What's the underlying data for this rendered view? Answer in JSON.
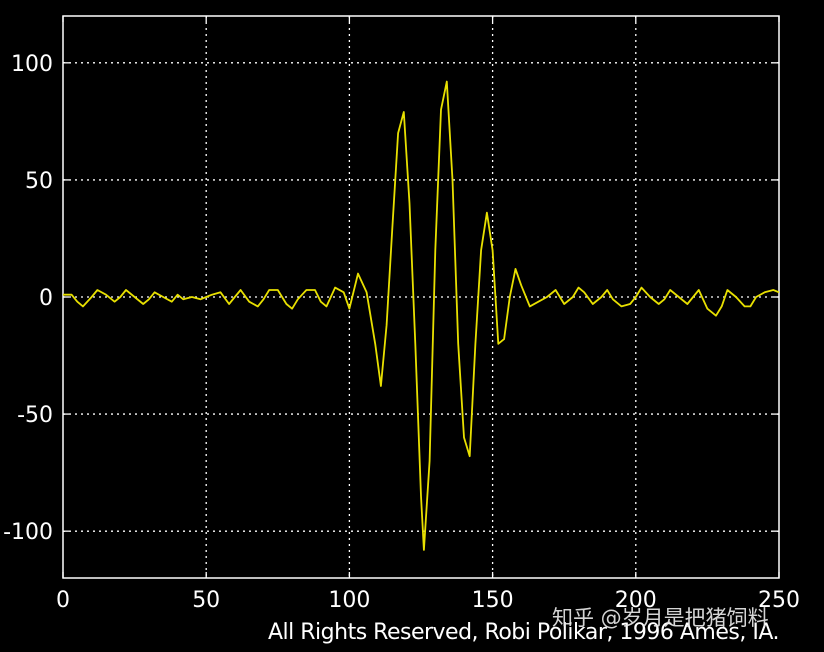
{
  "chart_data": {
    "type": "line",
    "title": "",
    "xlabel": "",
    "ylabel": "",
    "xlim": [
      0,
      250
    ],
    "ylim": [
      -120,
      120
    ],
    "grid": true,
    "x_ticks": [
      "0",
      "50",
      "100",
      "150",
      "200",
      "250"
    ],
    "y_ticks": [
      "100",
      "50",
      "0",
      "-50",
      "-100"
    ],
    "colors": {
      "background": "#000000",
      "axes": "#ffffff",
      "grid": "#ffffff",
      "line": "#e8e000"
    },
    "series": [
      {
        "x": [
          0,
          3,
          5,
          7,
          10,
          12,
          15,
          18,
          20,
          22,
          25,
          28,
          30,
          32,
          35,
          38,
          40,
          42,
          45,
          48,
          50,
          52,
          55,
          58,
          60,
          62,
          65,
          68,
          70,
          72,
          75,
          78,
          80,
          82,
          85,
          88,
          90,
          92,
          95,
          98,
          100,
          103,
          106,
          109,
          111,
          113,
          115,
          117,
          119,
          121,
          123,
          125,
          126,
          128,
          130,
          132,
          134,
          136,
          138,
          140,
          142,
          144,
          146,
          148,
          150,
          152,
          154,
          156,
          158,
          160,
          163,
          166,
          169,
          172,
          175,
          178,
          180,
          182,
          185,
          188,
          190,
          192,
          195,
          198,
          200,
          202,
          205,
          208,
          210,
          212,
          215,
          218,
          220,
          222,
          225,
          228,
          230,
          232,
          235,
          238,
          240,
          242,
          245,
          248,
          250
        ],
        "y": [
          1,
          1,
          -2,
          -4,
          0,
          3,
          1,
          -2,
          0,
          3,
          0,
          -3,
          -1,
          2,
          0,
          -2,
          1,
          -1,
          0,
          -1,
          0,
          1,
          2,
          -3,
          0,
          3,
          -2,
          -4,
          -1,
          3,
          3,
          -3,
          -5,
          -1,
          3,
          3,
          -2,
          -4,
          4,
          2,
          -5,
          10,
          2,
          -20,
          -38,
          -12,
          30,
          70,
          79,
          40,
          -20,
          -85,
          -108,
          -70,
          20,
          80,
          92,
          50,
          -20,
          -60,
          -68,
          -20,
          20,
          36,
          20,
          -20,
          -18,
          0,
          12,
          5,
          -4,
          -2,
          0,
          3,
          -3,
          0,
          4,
          2,
          -3,
          0,
          3,
          -1,
          -4,
          -3,
          0,
          4,
          0,
          -3,
          -1,
          3,
          0,
          -3,
          0,
          3,
          -5,
          -8,
          -4,
          3,
          0,
          -4,
          -4,
          0,
          2,
          3,
          2
        ]
      }
    ]
  },
  "footer": {
    "copyright": "All Rights Reserved, Robi Polikar, 1996 Ames, IA."
  },
  "watermark": {
    "text": "知乎 @岁月是把猪饲料"
  }
}
